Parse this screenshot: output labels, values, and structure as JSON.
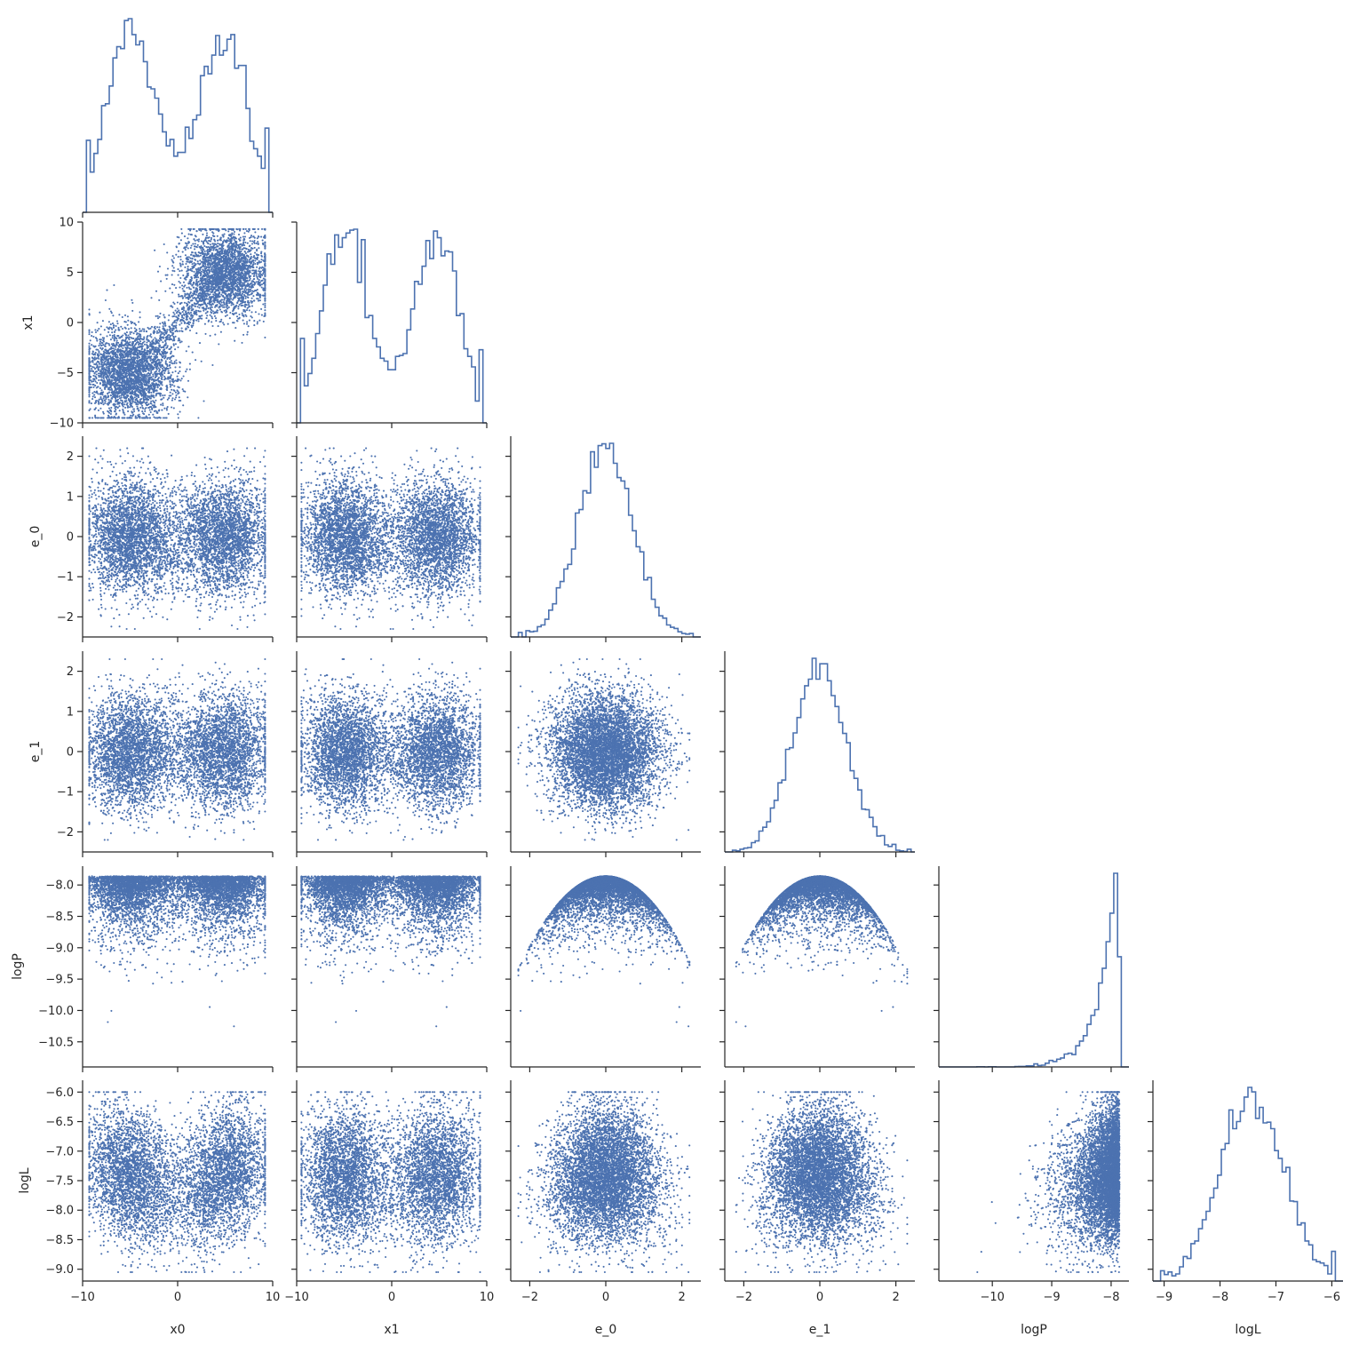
{
  "chart_data": {
    "type": "pairplot",
    "variables": [
      {
        "name": "x0",
        "range": [
          -10,
          10
        ],
        "ticks": [
          "−10",
          "0",
          "10"
        ]
      },
      {
        "name": "x1",
        "range": [
          -10,
          10
        ],
        "ticks": [
          "−10",
          "−5",
          "0",
          "5",
          "10"
        ]
      },
      {
        "name": "e_0",
        "range": [
          -2.5,
          2.5
        ],
        "ticks": [
          "−2",
          "−1",
          "0",
          "1",
          "2"
        ]
      },
      {
        "name": "e_1",
        "range": [
          -2.5,
          2.5
        ],
        "ticks": [
          "−2",
          "−1",
          "0",
          "1",
          "2"
        ]
      },
      {
        "name": "logP",
        "range": [
          -10.9,
          -7.7
        ],
        "ticks": [
          "−10.5",
          "−10.0",
          "−9.5",
          "−9.0",
          "−8.5",
          "−8.0"
        ]
      },
      {
        "name": "logL",
        "range": [
          -9.2,
          -5.8
        ],
        "ticks": [
          "−9.0",
          "−8.5",
          "−8.0",
          "−7.5",
          "−7.0",
          "−6.5",
          "−6.0"
        ]
      }
    ],
    "x_tick_values": {
      "x0": [
        -10,
        0,
        10
      ],
      "x1": [
        -10,
        0,
        10
      ],
      "e_0": [
        -2,
        0,
        2
      ],
      "e_1": [
        -2,
        0,
        2
      ],
      "logP": [
        -10,
        -9,
        -8
      ],
      "logL": [
        -9,
        -8,
        -7,
        -6
      ]
    },
    "x_tick_labels": {
      "x0": [
        "−10",
        "0",
        "10"
      ],
      "x1": [
        "−10",
        "0",
        "10"
      ],
      "e_0": [
        "−2",
        "0",
        "2"
      ],
      "e_1": [
        "−2",
        "0",
        "2"
      ],
      "logP": [
        "−10",
        "−9",
        "−8"
      ],
      "logL": [
        "−9",
        "−8",
        "−7",
        "−6"
      ]
    },
    "y_tick_values": {
      "x1": [
        -10,
        -5,
        0,
        5,
        10
      ],
      "e_0": [
        -2,
        -1,
        0,
        1,
        2
      ],
      "e_1": [
        -2,
        -1,
        0,
        1,
        2
      ],
      "logP": [
        -10.5,
        -10.0,
        -9.5,
        -9.0,
        -8.5,
        -8.0
      ],
      "logL": [
        -9.0,
        -8.5,
        -8.0,
        -7.5,
        -7.0,
        -6.5,
        -6.0
      ]
    },
    "diagonal": "step histogram",
    "lower_triangle": "scatter",
    "upper_triangle": "empty",
    "sample_count": 10000,
    "color": "#4c72b0"
  }
}
